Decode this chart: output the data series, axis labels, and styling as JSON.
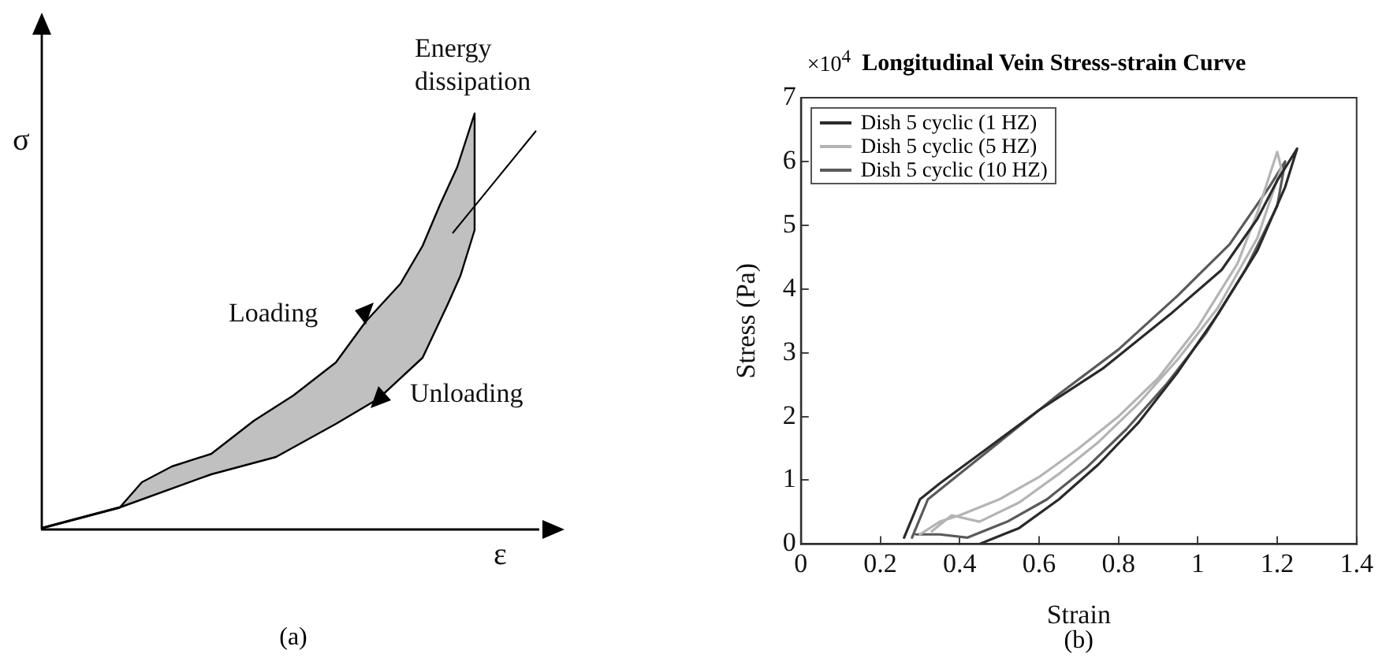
{
  "chart_data": [
    {
      "type": "other",
      "xlabel": "ε",
      "ylabel": "σ",
      "annotations": [
        "Loading",
        "Unloading",
        "Energy dissipation",
        "(a)"
      ]
    },
    {
      "type": "line",
      "title": "Longitudinal Vein Stress-strain Curve",
      "xlabel": "Strain",
      "ylabel": "Stress (Pa)",
      "xlim": [
        0,
        1.4
      ],
      "xticks": [
        0,
        0.2,
        0.4,
        0.6,
        0.8,
        1,
        1.2,
        1.4
      ],
      "ylim": [
        0,
        7
      ],
      "yticks": [
        0,
        1,
        2,
        3,
        4,
        5,
        6,
        7
      ],
      "grid": false,
      "legend": "top left",
      "series": [
        {
          "name": "Dish 5 cyclic (1 HZ)",
          "color": "#2a2a2a",
          "x": [
            0.26,
            0.3,
            0.35,
            0.47,
            0.6,
            0.76,
            0.93,
            1.06,
            1.15,
            1.2,
            1.25,
            1.22,
            1.15,
            1.05,
            0.95,
            0.85,
            0.75,
            0.65,
            0.55,
            0.45
          ],
          "values": [
            0.1,
            0.7,
            0.95,
            1.5,
            2.1,
            2.75,
            3.6,
            4.3,
            5.1,
            5.7,
            6.2,
            5.6,
            4.6,
            3.6,
            2.7,
            1.9,
            1.25,
            0.7,
            0.25,
            0
          ]
        },
        {
          "name": "Dish 5 cyclic (5 HZ)",
          "color": "#b4b4b4",
          "x": [
            0.3,
            0.35,
            0.4,
            0.5,
            0.6,
            0.7,
            0.8,
            0.9,
            1,
            1.1,
            1.15,
            1.2,
            1.21,
            1.15,
            1.05,
            0.95,
            0.85,
            0.75,
            0.65,
            0.55,
            0.45,
            0.38,
            0.33
          ],
          "values": [
            0.15,
            0.35,
            0.45,
            0.7,
            1.05,
            1.5,
            2,
            2.6,
            3.4,
            4.4,
            5.2,
            6.15,
            5.9,
            4.8,
            3.7,
            2.9,
            2.2,
            1.6,
            1.1,
            0.65,
            0.35,
            0.45,
            0.2
          ]
        },
        {
          "name": "Dish 5 cyclic (10 HZ)",
          "color": "#5a5a5a",
          "x": [
            0.28,
            0.32,
            0.37,
            0.5,
            0.65,
            0.8,
            0.95,
            1.08,
            1.18,
            1.22,
            1.2,
            1.12,
            1.02,
            0.92,
            0.82,
            0.72,
            0.62,
            0.52,
            0.42,
            0.35,
            0.29
          ],
          "values": [
            0.1,
            0.7,
            0.95,
            1.6,
            2.35,
            3.05,
            3.9,
            4.7,
            5.6,
            6,
            5.3,
            4.3,
            3.3,
            2.5,
            1.8,
            1.2,
            0.7,
            0.35,
            0.1,
            0.15,
            0.15
          ]
        }
      ],
      "annotations": [
        "×10$^{4}$",
        "(b)"
      ]
    }
  ]
}
